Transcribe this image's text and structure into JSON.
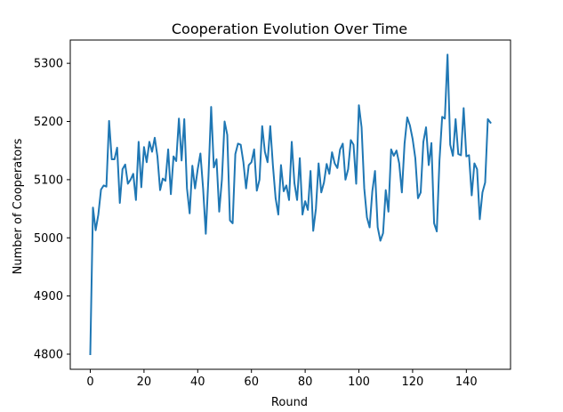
{
  "chart_data": {
    "type": "line",
    "title": "Cooperation Evolution Over Time",
    "xlabel": "Round",
    "ylabel": "Number of Cooperators",
    "xlim": [
      -7.45,
      156.45
    ],
    "ylim": [
      4774,
      5340
    ],
    "xticks": [
      0,
      20,
      40,
      60,
      80,
      100,
      120,
      140
    ],
    "yticks": [
      4800,
      4900,
      5000,
      5100,
      5200,
      5300
    ],
    "grid": false,
    "legend": "none",
    "series": [
      {
        "color": "#1f77b4",
        "x": [
          0,
          1,
          2,
          3,
          4,
          5,
          6,
          7,
          8,
          9,
          10,
          11,
          12,
          13,
          14,
          15,
          16,
          17,
          18,
          19,
          20,
          21,
          22,
          23,
          24,
          25,
          26,
          27,
          28,
          29,
          30,
          31,
          32,
          33,
          34,
          35,
          36,
          37,
          38,
          39,
          40,
          41,
          42,
          43,
          44,
          45,
          46,
          47,
          48,
          49,
          50,
          51,
          52,
          53,
          54,
          55,
          56,
          57,
          58,
          59,
          60,
          61,
          62,
          63,
          64,
          65,
          66,
          67,
          68,
          69,
          70,
          71,
          72,
          73,
          74,
          75,
          76,
          77,
          78,
          79,
          80,
          81,
          82,
          83,
          84,
          85,
          86,
          87,
          88,
          89,
          90,
          91,
          92,
          93,
          94,
          95,
          96,
          97,
          98,
          99,
          100,
          101,
          102,
          103,
          104,
          105,
          106,
          107,
          108,
          109,
          110,
          111,
          112,
          113,
          114,
          115,
          116,
          117,
          118,
          119,
          120,
          121,
          122,
          123,
          124,
          125,
          126,
          127,
          128,
          129,
          130,
          131,
          132,
          133,
          134,
          135,
          136,
          137,
          138,
          139,
          140,
          141,
          142,
          143,
          144,
          145,
          146,
          147,
          148,
          149
        ],
        "values": [
          4800,
          5052,
          5013,
          5040,
          5083,
          5090,
          5088,
          5201,
          5135,
          5135,
          5155,
          5060,
          5118,
          5126,
          5093,
          5100,
          5110,
          5065,
          5165,
          5087,
          5156,
          5130,
          5165,
          5148,
          5172,
          5140,
          5082,
          5102,
          5098,
          5152,
          5075,
          5140,
          5132,
          5205,
          5133,
          5204,
          5085,
          5042,
          5124,
          5085,
          5118,
          5145,
          5085,
          5007,
          5105,
          5225,
          5121,
          5135,
          5045,
          5100,
          5200,
          5177,
          5030,
          5025,
          5144,
          5162,
          5160,
          5130,
          5085,
          5125,
          5130,
          5152,
          5081,
          5100,
          5192,
          5148,
          5130,
          5192,
          5124,
          5068,
          5040,
          5125,
          5080,
          5090,
          5065,
          5165,
          5094,
          5065,
          5137,
          5040,
          5063,
          5048,
          5115,
          5012,
          5050,
          5128,
          5078,
          5095,
          5127,
          5110,
          5147,
          5128,
          5120,
          5152,
          5162,
          5100,
          5118,
          5168,
          5160,
          5093,
          5228,
          5190,
          5085,
          5035,
          5018,
          5080,
          5115,
          5018,
          4995,
          5008,
          5082,
          5045,
          5152,
          5141,
          5150,
          5128,
          5078,
          5162,
          5207,
          5193,
          5170,
          5137,
          5068,
          5078,
          5165,
          5190,
          5125,
          5163,
          5025,
          5011,
          5133,
          5208,
          5205,
          5315,
          5160,
          5141,
          5204,
          5144,
          5142,
          5223,
          5140,
          5142,
          5073,
          5128,
          5118,
          5032,
          5078,
          5095,
          5204,
          5198
        ]
      }
    ]
  }
}
